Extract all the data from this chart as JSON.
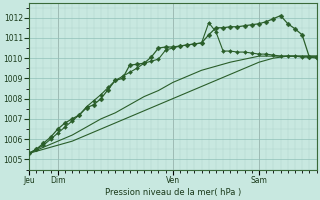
{
  "xlabel": "Pression niveau de la mer( hPa )",
  "background_color": "#c8e8e0",
  "line_color": "#2a5e2a",
  "ylim": [
    1004.5,
    1012.7
  ],
  "yticks": [
    1005,
    1006,
    1007,
    1008,
    1009,
    1010,
    1011,
    1012
  ],
  "xlim": [
    0,
    240
  ],
  "day_positions": [
    0,
    24,
    120,
    192
  ],
  "day_labels": [
    "Jeu",
    "Dim",
    "Ven",
    "Sam"
  ],
  "series1_x": [
    0,
    12,
    24,
    36,
    48,
    60,
    72,
    84,
    96,
    108,
    120,
    132,
    144,
    156,
    168,
    180,
    192,
    204,
    216,
    228,
    240
  ],
  "series1_y": [
    1005.3,
    1005.5,
    1005.7,
    1005.9,
    1006.2,
    1006.5,
    1006.8,
    1007.1,
    1007.4,
    1007.7,
    1008.0,
    1008.3,
    1008.6,
    1008.9,
    1009.2,
    1009.5,
    1009.8,
    1010.0,
    1010.1,
    1010.1,
    1010.1
  ],
  "series2_x": [
    0,
    12,
    24,
    36,
    48,
    60,
    72,
    84,
    96,
    108,
    120,
    132,
    144,
    156,
    168,
    180,
    192,
    204,
    216,
    228,
    240
  ],
  "series2_y": [
    1005.3,
    1005.6,
    1005.9,
    1006.2,
    1006.6,
    1007.0,
    1007.3,
    1007.7,
    1008.1,
    1008.4,
    1008.8,
    1009.1,
    1009.4,
    1009.6,
    1009.8,
    1009.95,
    1010.1,
    1010.1,
    1010.1,
    1010.1,
    1010.1
  ],
  "series3_x": [
    0,
    6,
    12,
    18,
    24,
    30,
    36,
    42,
    48,
    54,
    60,
    66,
    72,
    78,
    84,
    90,
    96,
    102,
    108,
    114,
    120,
    126,
    132,
    138,
    144,
    150,
    156,
    162,
    168,
    174,
    180,
    186,
    192,
    198,
    204,
    210,
    216,
    222,
    228,
    234,
    240
  ],
  "series3_y": [
    1005.3,
    1005.5,
    1005.7,
    1006.0,
    1006.3,
    1006.6,
    1006.9,
    1007.2,
    1007.6,
    1007.9,
    1008.2,
    1008.55,
    1008.9,
    1009.1,
    1009.3,
    1009.5,
    1009.75,
    1009.85,
    1009.95,
    1010.4,
    1010.5,
    1010.6,
    1010.65,
    1010.7,
    1010.75,
    1011.75,
    1011.3,
    1010.35,
    1010.35,
    1010.3,
    1010.3,
    1010.25,
    1010.2,
    1010.2,
    1010.15,
    1010.1,
    1010.1,
    1010.1,
    1010.05,
    1010.05,
    1010.0
  ],
  "series4_x": [
    0,
    6,
    12,
    18,
    24,
    30,
    36,
    42,
    48,
    54,
    60,
    66,
    72,
    78,
    84,
    90,
    96,
    102,
    108,
    114,
    120,
    126,
    132,
    138,
    144,
    150,
    156,
    162,
    168,
    174,
    180,
    186,
    192,
    198,
    204,
    210,
    216,
    222,
    228,
    234,
    240
  ],
  "series4_y": [
    1005.3,
    1005.5,
    1005.8,
    1006.1,
    1006.5,
    1006.8,
    1007.0,
    1007.2,
    1007.55,
    1007.7,
    1008.0,
    1008.45,
    1008.9,
    1009.0,
    1009.65,
    1009.7,
    1009.75,
    1010.05,
    1010.5,
    1010.55,
    1010.55,
    1010.6,
    1010.65,
    1010.7,
    1010.75,
    1011.15,
    1011.5,
    1011.5,
    1011.55,
    1011.55,
    1011.6,
    1011.65,
    1011.7,
    1011.8,
    1011.95,
    1012.1,
    1011.7,
    1011.45,
    1011.15,
    1010.05,
    1010.05
  ]
}
